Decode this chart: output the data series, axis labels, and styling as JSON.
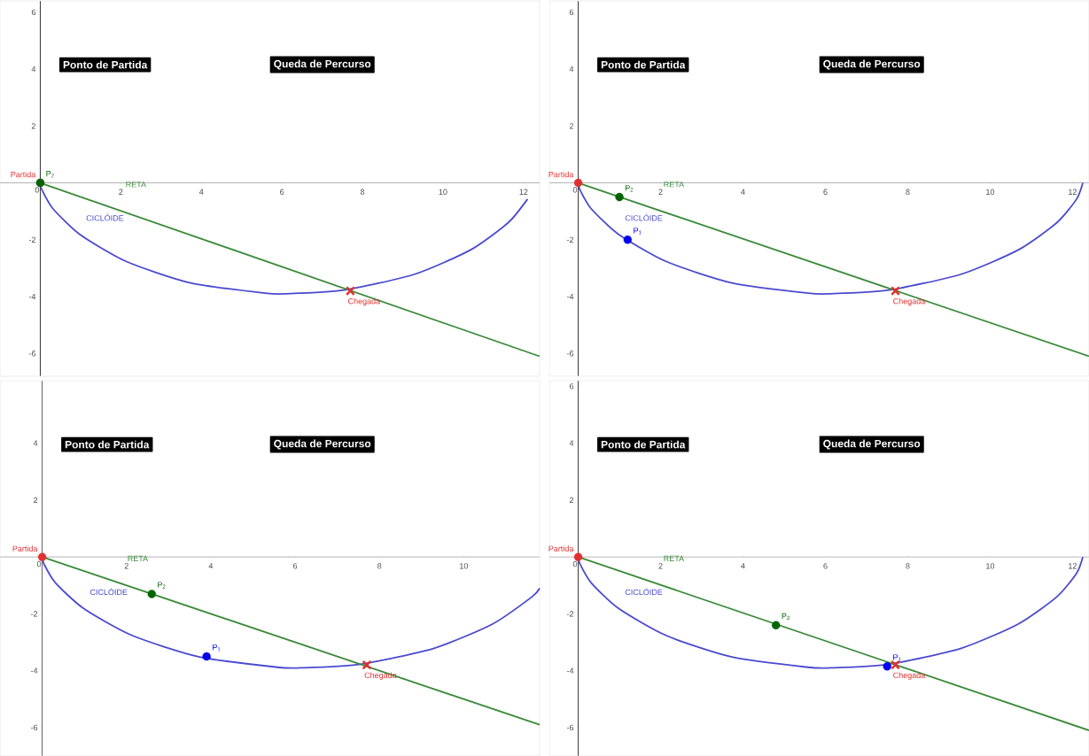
{
  "chart_data": [
    {
      "type": "line",
      "xlim": [
        -1.0,
        12.4
      ],
      "ylim": [
        -6.8,
        6.4
      ],
      "xticks": [
        0,
        2,
        4,
        6,
        8,
        10,
        12
      ],
      "yticks": [
        -6,
        -4,
        -2,
        2,
        4,
        6
      ],
      "annotations": [
        "Ponto de Partida",
        "Queda de Percurso"
      ],
      "series": [
        {
          "name": "CICLÓIDE",
          "color": "#4a4ad0",
          "x": [
            0,
            0.04,
            0.31,
            0.98,
            2.13,
            3.71,
            5.58,
            6.13,
            7.51,
            9.28,
            10.68,
            11.62,
            12.1
          ],
          "values": [
            0,
            -0.24,
            -0.9,
            -1.81,
            -2.76,
            -3.51,
            -3.88,
            -3.9,
            -3.78,
            -3.22,
            -2.36,
            -1.4,
            -0.57
          ]
        },
        {
          "name": "RETA",
          "color": "#3a8a3a",
          "x": [
            0,
            12.4
          ],
          "values": [
            0,
            -6.1
          ]
        },
        {
          "type": "scatter",
          "name": "Partida",
          "marker": "circle",
          "color": "#e03030",
          "x": [
            0
          ],
          "values": [
            0
          ]
        },
        {
          "type": "scatter",
          "name": "P$_{2}$",
          "marker": "circle",
          "color": "#006400",
          "x": [
            0
          ],
          "values": [
            0
          ]
        },
        {
          "type": "scatter",
          "name": "Chegada",
          "marker": "cross",
          "color": "#e03030",
          "x": [
            7.7
          ],
          "values": [
            -3.8
          ]
        }
      ]
    },
    {
      "type": "line",
      "xlim": [
        -0.7,
        12.4
      ],
      "ylim": [
        -6.8,
        6.4
      ],
      "xticks": [
        0,
        2,
        4,
        6,
        8,
        10,
        12
      ],
      "yticks": [
        -6,
        -4,
        -2,
        2,
        4,
        6
      ],
      "annotations": [
        "Ponto de Partida",
        "Queda de Percurso"
      ],
      "series": [
        {
          "name": "CICLÓIDE",
          "color": "#4a4ad0",
          "x": [
            0,
            0.04,
            0.31,
            0.98,
            2.13,
            3.71,
            5.58,
            6.13,
            7.51,
            9.28,
            10.68,
            11.62,
            12.1,
            12.25
          ],
          "values": [
            0,
            -0.24,
            -0.9,
            -1.81,
            -2.76,
            -3.51,
            -3.88,
            -3.9,
            -3.78,
            -3.22,
            -2.36,
            -1.4,
            -0.57,
            0
          ]
        },
        {
          "name": "RETA",
          "color": "#3a8a3a",
          "x": [
            0,
            12.4
          ],
          "values": [
            0,
            -6.1
          ]
        },
        {
          "type": "scatter",
          "name": "Partida",
          "marker": "circle",
          "color": "#e03030",
          "x": [
            0
          ],
          "values": [
            0
          ]
        },
        {
          "type": "scatter",
          "name": "P$_{2}$",
          "marker": "circle",
          "color": "#006400",
          "x": [
            1.0
          ],
          "values": [
            -0.5
          ]
        },
        {
          "type": "scatter",
          "name": "P$_{1}$",
          "marker": "circle",
          "color": "#0000ee",
          "x": [
            1.2
          ],
          "values": [
            -2.0
          ]
        },
        {
          "type": "scatter",
          "name": "Chegada",
          "marker": "cross",
          "color": "#e03030",
          "x": [
            7.7
          ],
          "values": [
            -3.8
          ]
        }
      ]
    },
    {
      "type": "line",
      "xlim": [
        -1.0,
        11.8
      ],
      "ylim": [
        -7.0,
        6.2
      ],
      "xticks": [
        0,
        2,
        4,
        6,
        8,
        10
      ],
      "yticks": [
        -6,
        -4,
        -2,
        2,
        4
      ],
      "annotations": [
        "Ponto de Partida",
        "Queda de Percurso"
      ],
      "series": [
        {
          "name": "CICLÓIDE",
          "color": "#4a4ad0",
          "x": [
            0,
            0.04,
            0.31,
            0.98,
            2.13,
            3.71,
            5.58,
            6.13,
            7.51,
            9.28,
            10.68,
            11.62,
            11.8
          ],
          "values": [
            0,
            -0.24,
            -0.9,
            -1.81,
            -2.76,
            -3.51,
            -3.88,
            -3.9,
            -3.78,
            -3.22,
            -2.36,
            -1.4,
            -1.1
          ]
        },
        {
          "name": "RETA",
          "color": "#3a8a3a",
          "x": [
            0,
            11.8
          ],
          "values": [
            0,
            -5.9
          ]
        },
        {
          "type": "scatter",
          "name": "Partida",
          "marker": "circle",
          "color": "#e03030",
          "x": [
            0
          ],
          "values": [
            0
          ]
        },
        {
          "type": "scatter",
          "name": "P$_{2}$",
          "marker": "circle",
          "color": "#006400",
          "x": [
            2.6
          ],
          "values": [
            -1.3
          ]
        },
        {
          "type": "scatter",
          "name": "P$_{1}$",
          "marker": "circle",
          "color": "#0000ee",
          "x": [
            3.9
          ],
          "values": [
            -3.5
          ]
        },
        {
          "type": "scatter",
          "name": "Chegada",
          "marker": "cross",
          "color": "#e03030",
          "x": [
            7.7
          ],
          "values": [
            -3.8
          ]
        }
      ]
    },
    {
      "type": "line",
      "xlim": [
        -0.7,
        12.4
      ],
      "ylim": [
        -7.0,
        6.2
      ],
      "xticks": [
        0,
        2,
        4,
        6,
        8,
        10,
        12
      ],
      "yticks": [
        -6,
        -4,
        -2,
        2,
        4,
        6
      ],
      "annotations": [
        "Ponto de Partida",
        "Queda de Percurso"
      ],
      "series": [
        {
          "name": "CICLÓIDE",
          "color": "#4a4ad0",
          "x": [
            0,
            0.04,
            0.31,
            0.98,
            2.13,
            3.71,
            5.58,
            6.13,
            7.51,
            9.28,
            10.68,
            11.62,
            12.1,
            12.25
          ],
          "values": [
            0,
            -0.24,
            -0.9,
            -1.81,
            -2.76,
            -3.51,
            -3.88,
            -3.9,
            -3.78,
            -3.22,
            -2.36,
            -1.4,
            -0.57,
            0
          ]
        },
        {
          "name": "RETA",
          "color": "#3a8a3a",
          "x": [
            0,
            12.4
          ],
          "values": [
            0,
            -6.1
          ]
        },
        {
          "type": "scatter",
          "name": "Partida",
          "marker": "circle",
          "color": "#e03030",
          "x": [
            0
          ],
          "values": [
            0
          ]
        },
        {
          "type": "scatter",
          "name": "P$_{2}$",
          "marker": "circle",
          "color": "#006400",
          "x": [
            4.8
          ],
          "values": [
            -2.4
          ]
        },
        {
          "type": "scatter",
          "name": "P$_{1}$",
          "marker": "circle",
          "color": "#0000ee",
          "x": [
            7.5
          ],
          "values": [
            -3.85
          ]
        },
        {
          "type": "scatter",
          "name": "Chegada",
          "marker": "cross",
          "color": "#e03030",
          "x": [
            7.7
          ],
          "values": [
            -3.8
          ]
        }
      ]
    }
  ]
}
